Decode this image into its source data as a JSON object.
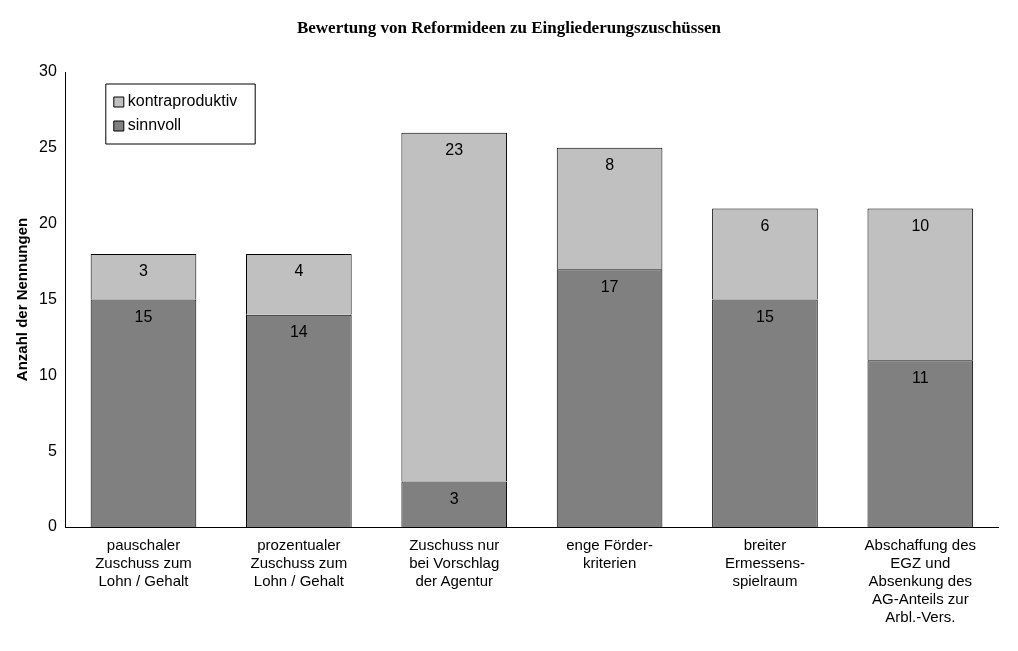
{
  "chart_data": {
    "type": "bar",
    "title": "Bewertung von Reformideen zu Eingliederungszuschüssen",
    "ylabel": "Anzahl der Nennungen",
    "categories": [
      "pauschaler Zuschuss zum Lohn / Gehalt",
      "prozentualer Zuschuss zum Lohn / Gehalt",
      "Zuschuss nur bei Vorschlag der Agentur",
      "enge Förder-kriterien",
      "breiter Ermessens-spielraum",
      "Abschaffung des EGZ und Absenkung des AG-Anteils zur Arbl.-Vers."
    ],
    "series": [
      {
        "name": "sinnvoll",
        "color": "#808080",
        "values": [
          15,
          14,
          3,
          17,
          15,
          11
        ]
      },
      {
        "name": "kontraproduktiv",
        "color": "#c0c0c0",
        "values": [
          3,
          4,
          23,
          8,
          6,
          10
        ]
      }
    ],
    "stacked": true,
    "data_labels": true,
    "ylim": [
      0,
      30
    ],
    "yticks": [
      0,
      5,
      10,
      15,
      20,
      25,
      30
    ],
    "grid": false,
    "legend": "top left"
  }
}
